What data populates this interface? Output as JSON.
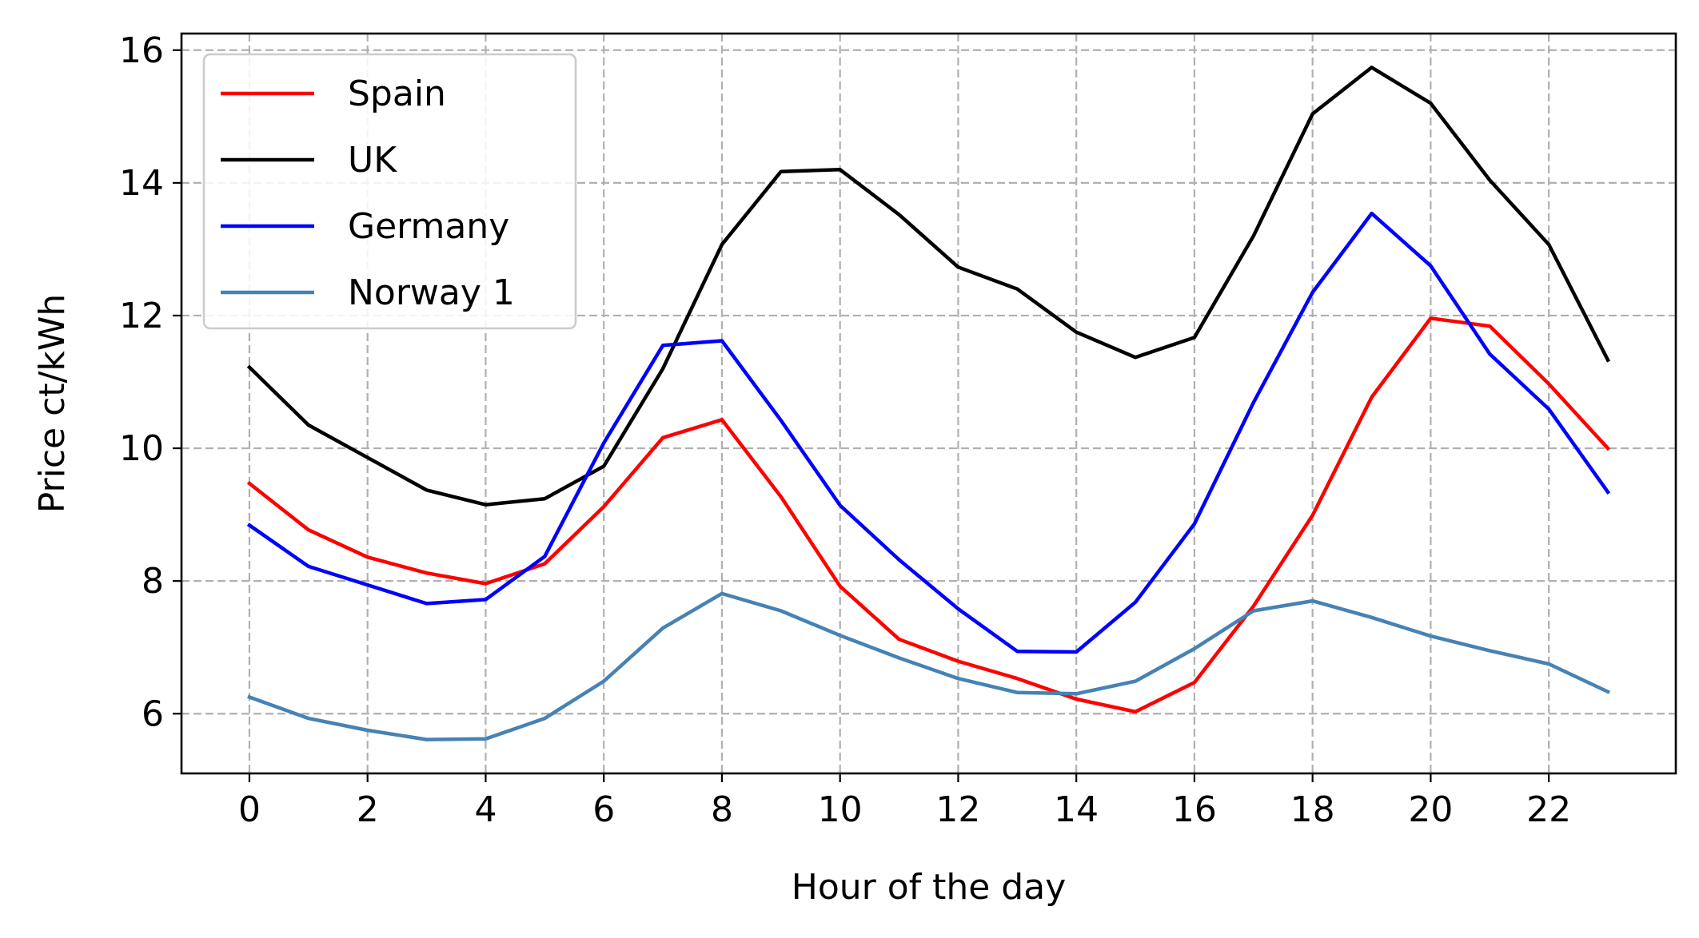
{
  "chart_data": {
    "type": "line",
    "title": "",
    "xlabel": "Hour of the day",
    "ylabel": "Price ct/kWh",
    "xlim": [
      -1.15,
      24.15
    ],
    "ylim": [
      5.1,
      16.25
    ],
    "xticks": [
      0,
      2,
      4,
      6,
      8,
      10,
      12,
      14,
      16,
      18,
      20,
      22
    ],
    "yticks": [
      6,
      8,
      10,
      12,
      14,
      16
    ],
    "grid": true,
    "grid_style": "dashed",
    "legend_position": "top-left",
    "x": [
      0,
      1,
      2,
      3,
      4,
      5,
      6,
      7,
      8,
      9,
      10,
      11,
      12,
      13,
      14,
      15,
      16,
      17,
      18,
      19,
      20,
      21,
      22,
      23
    ],
    "series": [
      {
        "name": "Spain",
        "color": "#ff0000",
        "values": [
          9.47,
          8.77,
          8.36,
          8.12,
          7.96,
          8.26,
          9.12,
          10.16,
          10.43,
          9.27,
          7.92,
          7.12,
          6.79,
          6.53,
          6.22,
          6.03,
          6.47,
          7.62,
          8.99,
          10.77,
          11.96,
          11.84,
          10.97,
          10.0
        ]
      },
      {
        "name": "UK",
        "color": "#000000",
        "values": [
          11.22,
          10.35,
          9.86,
          9.37,
          9.15,
          9.24,
          9.73,
          11.2,
          13.07,
          14.17,
          14.2,
          13.52,
          12.73,
          12.4,
          11.75,
          11.37,
          11.67,
          13.2,
          15.04,
          15.74,
          15.2,
          14.04,
          13.07,
          11.33
        ]
      },
      {
        "name": "Germany",
        "color": "#0000ff",
        "values": [
          8.84,
          8.22,
          7.94,
          7.66,
          7.72,
          8.37,
          10.08,
          11.55,
          11.62,
          10.42,
          9.14,
          8.32,
          7.58,
          6.94,
          6.93,
          7.68,
          8.86,
          10.69,
          12.35,
          13.54,
          12.75,
          11.42,
          10.59,
          9.34
        ]
      },
      {
        "name": "Norway 1",
        "color": "#4682b4",
        "values": [
          6.25,
          5.93,
          5.75,
          5.61,
          5.62,
          5.93,
          6.49,
          7.29,
          7.81,
          7.55,
          7.18,
          6.84,
          6.53,
          6.32,
          6.3,
          6.49,
          6.98,
          7.55,
          7.7,
          7.45,
          7.17,
          6.95,
          6.75,
          6.33
        ]
      }
    ]
  }
}
